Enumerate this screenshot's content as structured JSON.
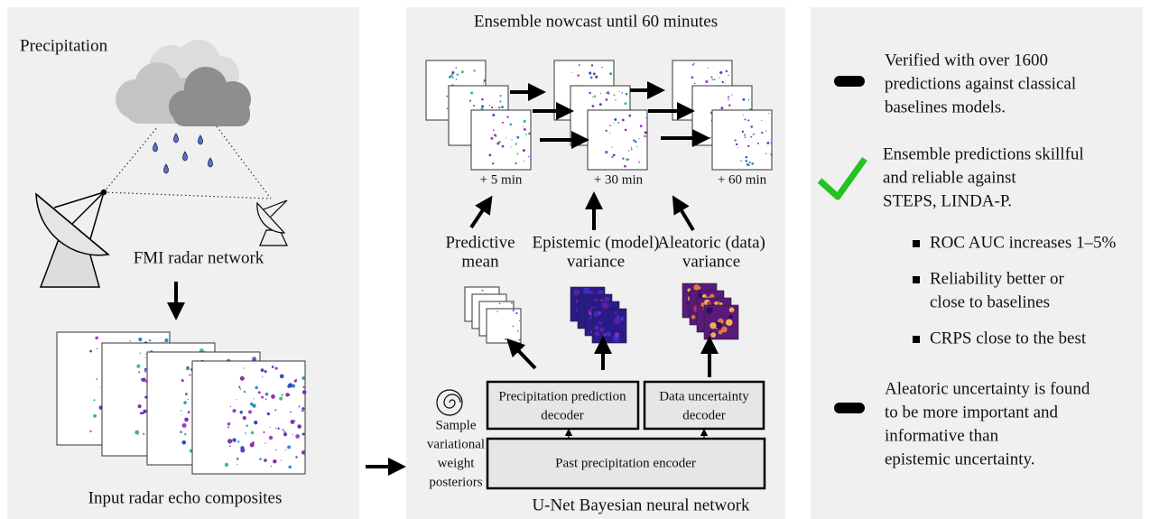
{
  "input": {
    "title": "Precipitation",
    "radar_label": "FMI radar network",
    "composites_label": "Input radar echo composites"
  },
  "model": {
    "title": "Ensemble nowcast until 60 minutes",
    "lead_times": [
      "+ 5 min",
      "+ 30 min",
      "+ 60 min"
    ],
    "outputs": [
      [
        "Predictive",
        "mean"
      ],
      [
        "Epistemic (model)",
        "variance"
      ],
      [
        "Aleatoric (data)",
        "variance"
      ]
    ],
    "prediction_decoder": [
      "Precipitation prediction",
      "decoder"
    ],
    "uncertainty_decoder": [
      "Data uncertainty",
      "decoder"
    ],
    "encoder": "Past precipitation encoder",
    "sampling": [
      "Sample",
      "variational",
      "weight",
      "posteriors"
    ],
    "caption": "U-Net Bayesian neural network"
  },
  "results": {
    "items": [
      {
        "lines": [
          "Verified with over 1600",
          "predictions against classical",
          "baselines models."
        ]
      },
      {
        "lines": [
          "Ensemble predictions skillful",
          "and reliable against",
          "STEPS, LINDA-P."
        ],
        "bullets": [
          [
            "ROC AUC increases 1–5%"
          ],
          [
            "Reliability better or",
            "close to baselines"
          ],
          [
            "CRPS close to the best"
          ]
        ]
      },
      {
        "lines": [
          "Aleatoric uncertainty is found",
          "to be more important and",
          "informative than",
          "epistemic uncertainty."
        ]
      }
    ]
  }
}
